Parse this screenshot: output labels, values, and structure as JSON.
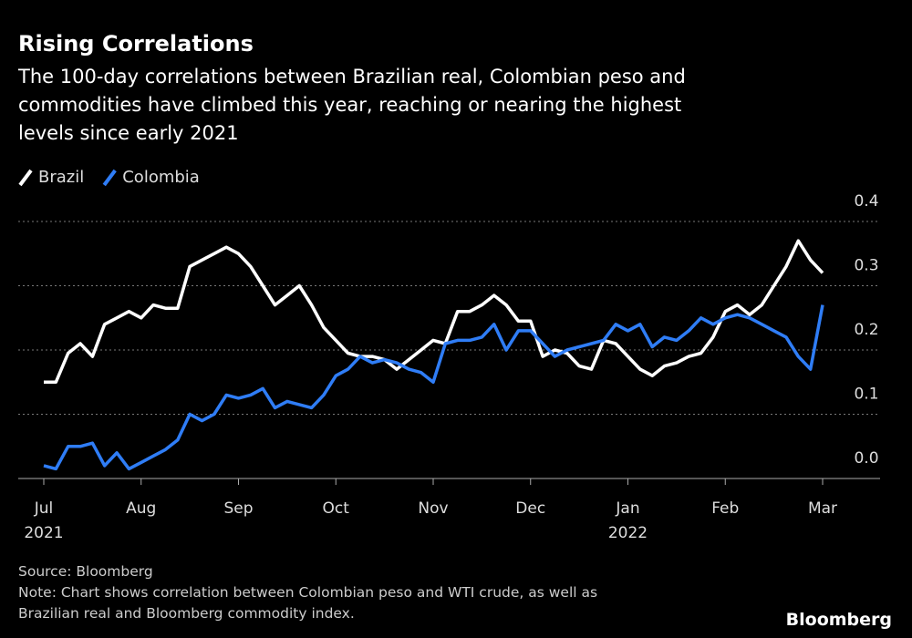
{
  "chart_data": {
    "type": "line",
    "title": "Rising Correlations",
    "subtitle": [
      "The 100-day correlations between Brazilian real, Colombian peso and",
      "commodities have climbed this year, reaching or nearing the highest",
      "levels since early 2021"
    ],
    "categories": [
      "Jul",
      null,
      null,
      null,
      null,
      null,
      null,
      null,
      "Aug",
      null,
      null,
      null,
      null,
      null,
      null,
      null,
      "Sep",
      null,
      null,
      null,
      null,
      null,
      null,
      null,
      "Oct",
      null,
      null,
      null,
      null,
      null,
      null,
      null,
      "Nov",
      null,
      null,
      null,
      null,
      null,
      null,
      null,
      "Dec",
      null,
      null,
      null,
      null,
      null,
      null,
      null,
      "Jan",
      null,
      null,
      null,
      null,
      null,
      null,
      null,
      "Feb",
      null,
      null,
      null,
      null,
      null,
      null,
      null,
      "Mar"
    ],
    "x_year_labels": [
      "2021",
      null,
      null,
      null,
      null,
      null,
      null,
      null,
      null,
      null,
      null,
      null,
      null,
      null,
      null,
      null,
      null,
      null,
      null,
      null,
      null,
      null,
      null,
      null,
      null,
      null,
      null,
      null,
      null,
      null,
      null,
      null,
      null,
      null,
      null,
      null,
      null,
      null,
      null,
      null,
      null,
      null,
      null,
      null,
      null,
      null,
      null,
      null,
      "2022",
      null,
      null,
      null,
      null,
      null,
      null,
      null,
      null,
      null,
      null,
      null,
      null,
      null,
      null,
      null,
      null
    ],
    "series": [
      {
        "name": "Brazil",
        "color": "#ffffff",
        "values": [
          0.15,
          0.15,
          0.195,
          0.21,
          0.19,
          0.24,
          0.25,
          0.26,
          0.25,
          0.27,
          0.265,
          0.265,
          0.33,
          0.34,
          0.35,
          0.36,
          0.35,
          0.33,
          0.3,
          0.27,
          0.285,
          0.3,
          0.27,
          0.235,
          0.215,
          0.195,
          0.19,
          0.19,
          0.185,
          0.17,
          0.185,
          0.2,
          0.215,
          0.21,
          0.26,
          0.26,
          0.27,
          0.285,
          0.27,
          0.245,
          0.245,
          0.19,
          0.2,
          0.195,
          0.175,
          0.17,
          0.215,
          0.21,
          0.19,
          0.17,
          0.16,
          0.175,
          0.18,
          0.19,
          0.195,
          0.22,
          0.26,
          0.27,
          0.255,
          0.27,
          0.3,
          0.33,
          0.37,
          0.34,
          0.32
        ]
      },
      {
        "name": "Colombia",
        "color": "#2f7df6",
        "values": [
          0.02,
          0.015,
          0.05,
          0.05,
          0.055,
          0.02,
          0.04,
          0.015,
          0.025,
          0.035,
          0.045,
          0.06,
          0.1,
          0.09,
          0.1,
          0.13,
          0.125,
          0.13,
          0.14,
          0.11,
          0.12,
          0.115,
          0.11,
          0.13,
          0.16,
          0.17,
          0.19,
          0.18,
          0.185,
          0.18,
          0.17,
          0.165,
          0.15,
          0.21,
          0.215,
          0.215,
          0.22,
          0.24,
          0.2,
          0.23,
          0.23,
          0.21,
          0.19,
          0.2,
          0.205,
          0.21,
          0.215,
          0.24,
          0.23,
          0.24,
          0.205,
          0.22,
          0.215,
          0.23,
          0.25,
          0.24,
          0.25,
          0.255,
          0.25,
          0.24,
          0.23,
          0.22,
          0.19,
          0.17,
          0.27
        ]
      }
    ],
    "ylim": [
      0,
      0.4
    ],
    "yticks": [
      {
        "value": 0,
        "label": "0.0"
      },
      0.1,
      0.2,
      0.3,
      0.4
    ],
    "grid": true,
    "source": "Source: Bloomberg",
    "note": [
      "Note: Chart shows correlation between Colombian peso and WTI crude, as well as",
      "Brazilian real and Bloomberg commodity index."
    ],
    "brand": "Bloomberg"
  }
}
